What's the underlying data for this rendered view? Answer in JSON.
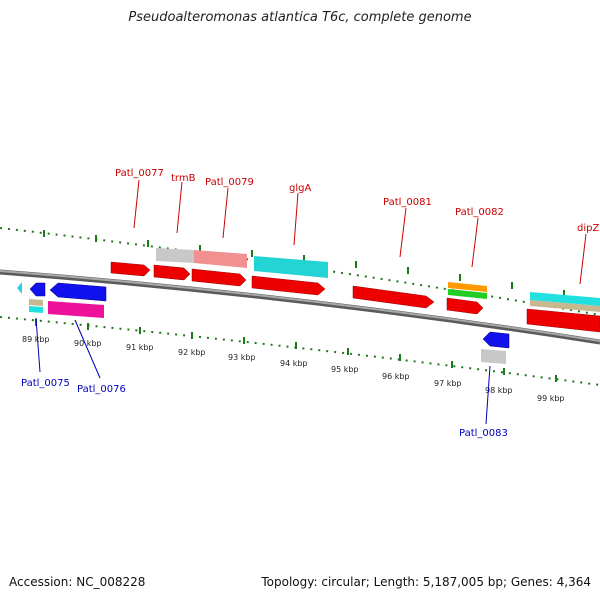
{
  "title": "Pseudoalteromonas atlantica T6c, complete genome",
  "accession": "Accession: NC_008228",
  "summary": "Topology: circular; Length: 5,187,005 bp; Genes: 4,364",
  "colors": {
    "backbone": "#8a8a8a",
    "tick": "#1a7a1a",
    "top_label": "#cc0000",
    "bottom_label": "#0000bb"
  },
  "kbp_labels": [
    "89 kbp",
    "90 kbp",
    "91 kbp",
    "92 kbp",
    "93 kbp",
    "94 kbp",
    "95 kbp",
    "96 kbp",
    "97 kbp",
    "98 kbp",
    "99 kbp"
  ],
  "top_gene_labels": [
    "Patl_0077",
    "trmB",
    "Patl_0079",
    "glgA",
    "Patl_0081",
    "Patl_0082",
    "dipZ"
  ],
  "bottom_gene_labels": [
    "Patl_0075",
    "Patl_0076",
    "Patl_0083"
  ]
}
